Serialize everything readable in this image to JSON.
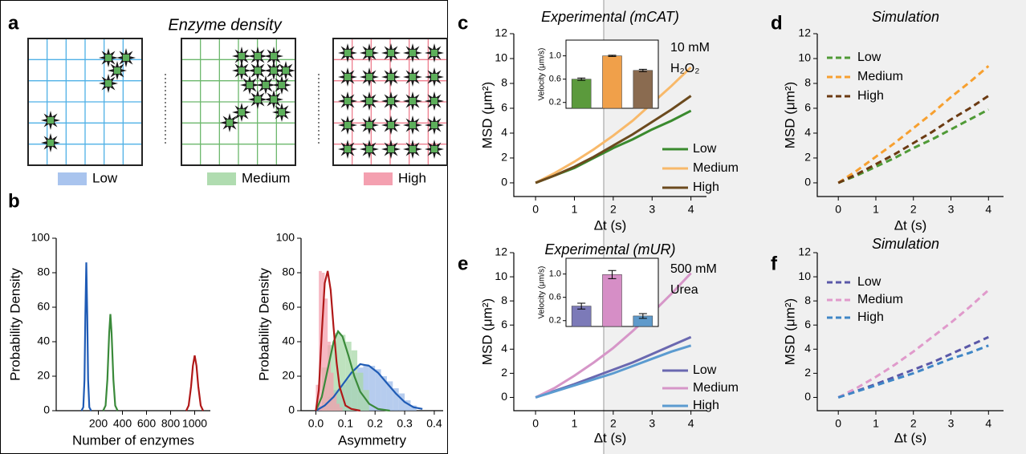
{
  "panel_labels": [
    "a",
    "b",
    "c",
    "d",
    "e",
    "f"
  ],
  "diagram": {
    "title": "Enzyme density",
    "legend": [
      {
        "label": "Low",
        "color": "#a9c4ee"
      },
      {
        "label": "Medium",
        "color": "#b0dcb0"
      },
      {
        "label": "High",
        "color": "#f4a0b0"
      }
    ]
  },
  "chart_data": [
    {
      "type": "density",
      "x_label": "Number of enzymes",
      "y_label": "Probability Density",
      "xlim": [
        -150,
        1130
      ],
      "xticks": [
        200,
        400,
        600,
        800,
        1000
      ],
      "ylim": [
        0,
        100
      ],
      "yticks": [
        0,
        20,
        40,
        60,
        80,
        100
      ],
      "series": [
        {
          "color": "#1f5bb5",
          "x": [
            60,
            75,
            85,
            92,
            100,
            108,
            115,
            125,
            140
          ],
          "values": [
            0,
            2,
            18,
            55,
            86,
            55,
            18,
            2,
            0
          ]
        },
        {
          "color": "#3a8a3a",
          "x": [
            240,
            260,
            275,
            290,
            300,
            310,
            325,
            340,
            360
          ],
          "values": [
            0,
            3,
            18,
            45,
            56,
            45,
            18,
            3,
            0
          ]
        },
        {
          "color": "#b01818",
          "x": [
            930,
            950,
            970,
            985,
            1000,
            1015,
            1030,
            1050,
            1070
          ],
          "values": [
            0,
            3,
            14,
            26,
            32,
            26,
            14,
            3,
            0
          ]
        }
      ]
    },
    {
      "type": "density",
      "x_label": "Asymmetry",
      "y_label": "Probability Density",
      "xlim": [
        -0.05,
        0.43
      ],
      "xticks": [
        {
          "value": 0,
          "label": "0.0"
        },
        0.1,
        0.2,
        0.3,
        0.4
      ],
      "ylim": [
        0,
        100
      ],
      "yticks": [
        0,
        20,
        40,
        60,
        80,
        100
      ],
      "histograms": [
        {
          "color": "#9dbbe8",
          "bins": [
            0,
            0.02,
            0.04,
            0.06,
            0.08,
            0.1,
            0.12,
            0.14,
            0.16,
            0.18,
            0.2,
            0.22,
            0.24,
            0.26,
            0.28,
            0.3,
            0.32,
            0.34
          ],
          "counts": [
            3,
            5,
            8,
            12,
            15,
            18,
            22,
            25,
            27,
            26,
            24,
            20,
            17,
            13,
            10,
            6,
            3
          ]
        },
        {
          "color": "#a8d8a8",
          "bins": [
            0.02,
            0.04,
            0.06,
            0.08,
            0.1,
            0.12,
            0.14,
            0.16,
            0.18
          ],
          "counts": [
            25,
            38,
            45,
            44,
            40,
            35,
            22,
            12
          ]
        },
        {
          "color": "#f4a0ae",
          "bins": [
            0,
            0.01,
            0.02,
            0.03,
            0.04,
            0.05,
            0.06,
            0.07,
            0.08,
            0.09
          ],
          "counts": [
            15,
            81,
            80,
            65,
            40,
            22,
            10,
            4,
            2
          ]
        }
      ],
      "series": [
        {
          "color": "#1f5bb5",
          "x": [
            0,
            0.03,
            0.06,
            0.09,
            0.12,
            0.15,
            0.18,
            0.21,
            0.24,
            0.27,
            0.3,
            0.33,
            0.36
          ],
          "values": [
            0,
            3,
            8,
            15,
            22,
            27,
            26,
            22,
            16,
            10,
            5,
            2,
            1
          ]
        },
        {
          "color": "#3a8a3a",
          "x": [
            0,
            0.02,
            0.04,
            0.06,
            0.075,
            0.09,
            0.11,
            0.13,
            0.15,
            0.18,
            0.21,
            0.25
          ],
          "values": [
            0,
            8,
            24,
            40,
            46,
            43,
            32,
            20,
            11,
            4,
            1,
            0
          ]
        },
        {
          "color": "#b01818",
          "x": [
            0,
            0.01,
            0.02,
            0.03,
            0.04,
            0.05,
            0.06,
            0.07,
            0.08,
            0.1,
            0.12,
            0.15
          ],
          "values": [
            0,
            12,
            45,
            74,
            81,
            70,
            48,
            28,
            14,
            3,
            1,
            0
          ]
        }
      ]
    },
    {
      "type": "line",
      "title": "Experimental (mCAT)",
      "x_label": "Δt (s)",
      "y_label": "MSD (μm²)",
      "annotations": [
        "10 mM",
        "H₂O₂"
      ],
      "legend": "lower right",
      "line_style": "solid",
      "x": [
        0,
        0.5,
        1,
        1.5,
        2,
        2.5,
        3,
        3.5,
        4
      ],
      "xlim": [
        -0.56,
        4.4
      ],
      "xticks": [
        0,
        1,
        2,
        3,
        4
      ],
      "ylim": [
        -1.1,
        12
      ],
      "yticks": [
        0,
        2,
        4,
        6,
        8,
        10,
        12
      ],
      "series": [
        {
          "name": "Low",
          "color": "#3a8a2e",
          "values": [
            0,
            0.6,
            1.2,
            2.0,
            2.8,
            3.5,
            4.3,
            5.0,
            5.8
          ]
        },
        {
          "name": "Medium",
          "color": "#f8b96a",
          "values": [
            0,
            0.8,
            1.7,
            2.7,
            3.8,
            5.0,
            6.4,
            7.8,
            9.3
          ]
        },
        {
          "name": "High",
          "color": "#6b4a1e",
          "values": [
            0,
            0.6,
            1.3,
            2.1,
            3.0,
            3.9,
            4.9,
            5.9,
            7.0
          ]
        }
      ],
      "inset": {
        "type": "bar",
        "y_label": "Velocity (μm/s)",
        "ylim": [
          0.1,
          1.27
        ],
        "yticks": [
          0.2,
          0.6,
          {
            "value": 1,
            "label": "1.0"
          }
        ],
        "values": [
          0.6,
          1.0,
          0.75
        ],
        "errors": [
          0.02,
          0.01,
          0.02
        ],
        "colors": [
          "#5b9a3c",
          "#f0a04a",
          "#8a6b50"
        ]
      }
    },
    {
      "type": "line",
      "title": "Simulation",
      "x_label": "Δt (s)",
      "y_label": "MSD (μm²)",
      "legend": "upper left",
      "line_style": "dashed",
      "x": [
        0,
        0.5,
        1,
        1.5,
        2,
        2.5,
        3,
        3.5,
        4
      ],
      "xlim": [
        -0.56,
        4.4
      ],
      "xticks": [
        0,
        1,
        2,
        3,
        4
      ],
      "ylim": [
        -1.1,
        12
      ],
      "yticks": [
        0,
        2,
        4,
        6,
        8,
        10,
        12
      ],
      "series": [
        {
          "name": "Low",
          "color": "#4f9a36",
          "values": [
            0,
            0.6,
            1.3,
            2.0,
            2.8,
            3.5,
            4.3,
            5.1,
            5.9
          ]
        },
        {
          "name": "Medium",
          "color": "#f7a030",
          "values": [
            0,
            1.0,
            2.1,
            3.2,
            4.4,
            5.6,
            6.9,
            8.1,
            9.4
          ]
        },
        {
          "name": "High",
          "color": "#6b3a12",
          "values": [
            0,
            0.7,
            1.5,
            2.3,
            3.2,
            4.1,
            5.1,
            6.0,
            7.0
          ]
        }
      ]
    },
    {
      "type": "line",
      "title": "Experimental (mUR)",
      "x_label": "Δt (s)",
      "y_label": "MSD (μm²)",
      "annotations": [
        "500 mM",
        "Urea"
      ],
      "legend": "lower right",
      "line_style": "solid",
      "x": [
        0,
        0.5,
        1,
        1.5,
        2,
        2.5,
        3,
        3.5,
        4
      ],
      "xlim": [
        -0.56,
        4.4
      ],
      "xticks": [
        0,
        1,
        2,
        3,
        4
      ],
      "ylim": [
        -1.1,
        12
      ],
      "yticks": [
        0,
        2,
        4,
        6,
        8,
        10,
        12
      ],
      "series": [
        {
          "name": "Low",
          "color": "#6a68b0",
          "values": [
            0,
            0.55,
            1.1,
            1.7,
            2.3,
            2.9,
            3.6,
            4.3,
            5.0
          ]
        },
        {
          "name": "Medium",
          "color": "#d696c8",
          "values": [
            0,
            0.8,
            1.8,
            2.9,
            4.1,
            5.5,
            7.0,
            8.6,
            10.3
          ]
        },
        {
          "name": "High",
          "color": "#5b9bd0",
          "values": [
            0,
            0.5,
            1.0,
            1.5,
            2.0,
            2.6,
            3.2,
            3.8,
            4.3
          ]
        }
      ],
      "inset": {
        "type": "bar",
        "y_label": "Velocity (μm/s)",
        "ylim": [
          0.1,
          1.27
        ],
        "yticks": [
          0.2,
          0.6,
          {
            "value": 1,
            "label": "1.0"
          }
        ],
        "values": [
          0.45,
          0.99,
          0.28
        ],
        "errors": [
          0.05,
          0.07,
          0.04
        ],
        "colors": [
          "#7c7ab8",
          "#d68ec6",
          "#5f9acb"
        ]
      }
    },
    {
      "type": "line",
      "title": "Simulation",
      "x_label": "Δt (s)",
      "y_label": "MSD (μm²)",
      "legend": "upper left",
      "line_style": "dashed",
      "x": [
        0,
        0.5,
        1,
        1.5,
        2,
        2.5,
        3,
        3.5,
        4
      ],
      "xlim": [
        -0.56,
        4.4
      ],
      "xticks": [
        0,
        1,
        2,
        3,
        4
      ],
      "ylim": [
        -1.1,
        12
      ],
      "yticks": [
        0,
        2,
        4,
        6,
        8,
        10,
        12
      ],
      "series": [
        {
          "name": "Low",
          "color": "#5a58a8",
          "values": [
            0,
            0.55,
            1.1,
            1.7,
            2.3,
            2.9,
            3.6,
            4.3,
            5.0
          ]
        },
        {
          "name": "Medium",
          "color": "#e09acb",
          "values": [
            0,
            0.8,
            1.7,
            2.7,
            3.8,
            5.0,
            6.2,
            7.5,
            8.9
          ]
        },
        {
          "name": "High",
          "color": "#3f86c6",
          "values": [
            0,
            0.5,
            1.0,
            1.5,
            2.0,
            2.6,
            3.2,
            3.7,
            4.3
          ]
        }
      ]
    }
  ]
}
